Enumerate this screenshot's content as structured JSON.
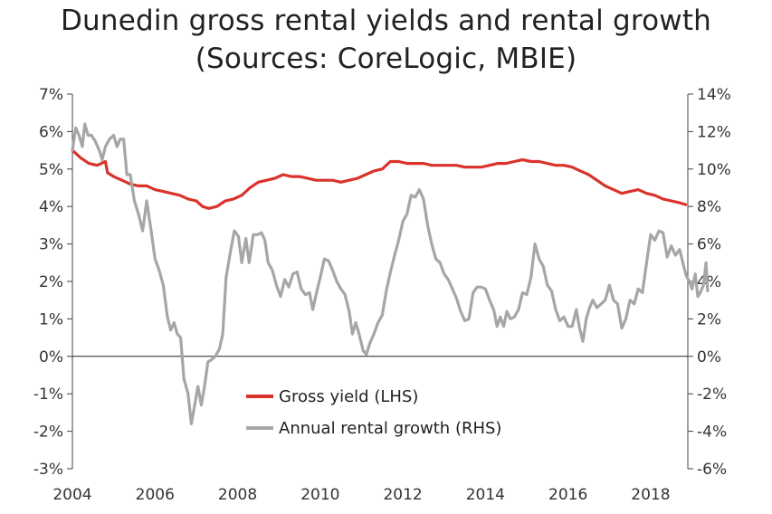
{
  "title_line1": "Dunedin gross rental yields and rental growth",
  "title_line2": "(Sources: CoreLogic, MBIE)",
  "chart_data": {
    "type": "line",
    "x_ticks": [
      "2004",
      "2006",
      "2008",
      "2010",
      "2012",
      "2014",
      "2016",
      "2018"
    ],
    "x_range": [
      2004,
      2018.9
    ],
    "y_left": {
      "ticks": [
        "7%",
        "6%",
        "5%",
        "4%",
        "3%",
        "2%",
        "1%",
        "0%",
        "-1%",
        "-2%",
        "-3%"
      ],
      "range": [
        -3,
        7
      ]
    },
    "y_right": {
      "ticks": [
        "14%",
        "12%",
        "10%",
        "8%",
        "6%",
        "4%",
        "2%",
        "0%",
        "-2%",
        "-4%",
        "-6%"
      ],
      "range": [
        -6,
        14
      ]
    },
    "legend_position": "center-left",
    "grid": false,
    "series": [
      {
        "name": "Gross yield (LHS)",
        "axis": "left",
        "color": "#d9332b",
        "points": [
          [
            2004.0,
            5.5
          ],
          [
            2004.2,
            5.3
          ],
          [
            2004.4,
            5.15
          ],
          [
            2004.6,
            5.1
          ],
          [
            2004.8,
            5.2
          ],
          [
            2004.85,
            4.9
          ],
          [
            2005.0,
            4.8
          ],
          [
            2005.2,
            4.7
          ],
          [
            2005.4,
            4.6
          ],
          [
            2005.6,
            4.55
          ],
          [
            2005.8,
            4.55
          ],
          [
            2006.0,
            4.45
          ],
          [
            2006.2,
            4.4
          ],
          [
            2006.4,
            4.35
          ],
          [
            2006.6,
            4.3
          ],
          [
            2006.8,
            4.2
          ],
          [
            2007.0,
            4.15
          ],
          [
            2007.15,
            4.0
          ],
          [
            2007.3,
            3.95
          ],
          [
            2007.5,
            4.0
          ],
          [
            2007.7,
            4.15
          ],
          [
            2007.9,
            4.2
          ],
          [
            2008.1,
            4.3
          ],
          [
            2008.3,
            4.5
          ],
          [
            2008.5,
            4.65
          ],
          [
            2008.7,
            4.7
          ],
          [
            2008.9,
            4.75
          ],
          [
            2009.1,
            4.85
          ],
          [
            2009.3,
            4.8
          ],
          [
            2009.5,
            4.8
          ],
          [
            2009.7,
            4.75
          ],
          [
            2009.9,
            4.7
          ],
          [
            2010.1,
            4.7
          ],
          [
            2010.3,
            4.7
          ],
          [
            2010.5,
            4.65
          ],
          [
            2010.7,
            4.7
          ],
          [
            2010.9,
            4.75
          ],
          [
            2011.1,
            4.85
          ],
          [
            2011.3,
            4.95
          ],
          [
            2011.5,
            5.0
          ],
          [
            2011.7,
            5.2
          ],
          [
            2011.9,
            5.2
          ],
          [
            2012.1,
            5.15
          ],
          [
            2012.3,
            5.15
          ],
          [
            2012.5,
            5.15
          ],
          [
            2012.7,
            5.1
          ],
          [
            2012.9,
            5.1
          ],
          [
            2013.1,
            5.1
          ],
          [
            2013.3,
            5.1
          ],
          [
            2013.5,
            5.05
          ],
          [
            2013.7,
            5.05
          ],
          [
            2013.9,
            5.05
          ],
          [
            2014.1,
            5.1
          ],
          [
            2014.3,
            5.15
          ],
          [
            2014.5,
            5.15
          ],
          [
            2014.7,
            5.2
          ],
          [
            2014.9,
            5.25
          ],
          [
            2015.1,
            5.2
          ],
          [
            2015.3,
            5.2
          ],
          [
            2015.5,
            5.15
          ],
          [
            2015.7,
            5.1
          ],
          [
            2015.9,
            5.1
          ],
          [
            2016.1,
            5.05
          ],
          [
            2016.3,
            4.95
          ],
          [
            2016.5,
            4.85
          ],
          [
            2016.7,
            4.7
          ],
          [
            2016.9,
            4.55
          ],
          [
            2017.1,
            4.45
          ],
          [
            2017.3,
            4.35
          ],
          [
            2017.5,
            4.4
          ],
          [
            2017.7,
            4.45
          ],
          [
            2017.9,
            4.35
          ],
          [
            2018.1,
            4.3
          ],
          [
            2018.3,
            4.2
          ],
          [
            2018.5,
            4.15
          ],
          [
            2018.7,
            4.1
          ],
          [
            2018.85,
            4.05
          ]
        ]
      },
      {
        "name": "Annual rental growth (RHS)",
        "axis": "right",
        "color": "#a6a6a6",
        "points": [
          [
            2004.0,
            11.0
          ],
          [
            2004.08,
            12.2
          ],
          [
            2004.16,
            11.8
          ],
          [
            2004.24,
            11.2
          ],
          [
            2004.3,
            12.4
          ],
          [
            2004.38,
            11.8
          ],
          [
            2004.46,
            11.8
          ],
          [
            2004.55,
            11.5
          ],
          [
            2004.65,
            11.0
          ],
          [
            2004.72,
            10.5
          ],
          [
            2004.8,
            11.2
          ],
          [
            2004.9,
            11.6
          ],
          [
            2005.0,
            11.8
          ],
          [
            2005.08,
            11.2
          ],
          [
            2005.16,
            11.6
          ],
          [
            2005.24,
            11.6
          ],
          [
            2005.32,
            9.7
          ],
          [
            2005.4,
            9.7
          ],
          [
            2005.5,
            8.3
          ],
          [
            2005.6,
            7.6
          ],
          [
            2005.7,
            6.7
          ],
          [
            2005.8,
            8.3
          ],
          [
            2005.9,
            6.8
          ],
          [
            2006.0,
            5.2
          ],
          [
            2006.1,
            4.6
          ],
          [
            2006.2,
            3.8
          ],
          [
            2006.3,
            2.1
          ],
          [
            2006.38,
            1.4
          ],
          [
            2006.46,
            1.8
          ],
          [
            2006.54,
            1.2
          ],
          [
            2006.62,
            1.0
          ],
          [
            2006.7,
            -1.2
          ],
          [
            2006.8,
            -2.0
          ],
          [
            2006.88,
            -3.6
          ],
          [
            2006.96,
            -2.6
          ],
          [
            2007.04,
            -1.6
          ],
          [
            2007.12,
            -2.6
          ],
          [
            2007.2,
            -1.6
          ],
          [
            2007.28,
            -0.3
          ],
          [
            2007.36,
            -0.2
          ],
          [
            2007.46,
            0.0
          ],
          [
            2007.56,
            0.4
          ],
          [
            2007.64,
            1.2
          ],
          [
            2007.72,
            4.2
          ],
          [
            2007.82,
            5.5
          ],
          [
            2007.92,
            6.7
          ],
          [
            2008.02,
            6.4
          ],
          [
            2008.1,
            5.0
          ],
          [
            2008.2,
            6.3
          ],
          [
            2008.28,
            5.0
          ],
          [
            2008.38,
            6.5
          ],
          [
            2008.48,
            6.5
          ],
          [
            2008.58,
            6.6
          ],
          [
            2008.66,
            6.2
          ],
          [
            2008.74,
            5.0
          ],
          [
            2008.84,
            4.6
          ],
          [
            2008.94,
            3.8
          ],
          [
            2009.04,
            3.2
          ],
          [
            2009.14,
            4.1
          ],
          [
            2009.24,
            3.7
          ],
          [
            2009.34,
            4.4
          ],
          [
            2009.44,
            4.5
          ],
          [
            2009.54,
            3.6
          ],
          [
            2009.64,
            3.3
          ],
          [
            2009.74,
            3.4
          ],
          [
            2009.82,
            2.5
          ],
          [
            2009.92,
            3.5
          ],
          [
            2010.0,
            4.2
          ],
          [
            2010.1,
            5.2
          ],
          [
            2010.2,
            5.1
          ],
          [
            2010.3,
            4.6
          ],
          [
            2010.4,
            4.0
          ],
          [
            2010.5,
            3.6
          ],
          [
            2010.6,
            3.3
          ],
          [
            2010.7,
            2.4
          ],
          [
            2010.78,
            1.2
          ],
          [
            2010.86,
            1.8
          ],
          [
            2010.94,
            1.2
          ],
          [
            2011.04,
            0.3
          ],
          [
            2011.12,
            0.1
          ],
          [
            2011.2,
            0.7
          ],
          [
            2011.3,
            1.2
          ],
          [
            2011.4,
            1.8
          ],
          [
            2011.5,
            2.2
          ],
          [
            2011.6,
            3.5
          ],
          [
            2011.7,
            4.5
          ],
          [
            2011.8,
            5.4
          ],
          [
            2011.9,
            6.2
          ],
          [
            2012.0,
            7.2
          ],
          [
            2012.1,
            7.6
          ],
          [
            2012.2,
            8.6
          ],
          [
            2012.3,
            8.5
          ],
          [
            2012.4,
            8.9
          ],
          [
            2012.5,
            8.4
          ],
          [
            2012.6,
            7.0
          ],
          [
            2012.7,
            6.0
          ],
          [
            2012.8,
            5.2
          ],
          [
            2012.9,
            5.0
          ],
          [
            2013.0,
            4.4
          ],
          [
            2013.1,
            4.1
          ],
          [
            2013.2,
            3.6
          ],
          [
            2013.3,
            3.1
          ],
          [
            2013.4,
            2.4
          ],
          [
            2013.5,
            1.9
          ],
          [
            2013.6,
            2.0
          ],
          [
            2013.7,
            3.4
          ],
          [
            2013.8,
            3.7
          ],
          [
            2013.9,
            3.7
          ],
          [
            2014.0,
            3.6
          ],
          [
            2014.1,
            3.0
          ],
          [
            2014.2,
            2.5
          ],
          [
            2014.28,
            1.6
          ],
          [
            2014.36,
            2.1
          ],
          [
            2014.44,
            1.6
          ],
          [
            2014.52,
            2.4
          ],
          [
            2014.6,
            2.0
          ],
          [
            2014.7,
            2.1
          ],
          [
            2014.8,
            2.5
          ],
          [
            2014.9,
            3.4
          ],
          [
            2015.0,
            3.3
          ],
          [
            2015.1,
            4.2
          ],
          [
            2015.2,
            6.0
          ],
          [
            2015.3,
            5.2
          ],
          [
            2015.4,
            4.8
          ],
          [
            2015.5,
            3.8
          ],
          [
            2015.6,
            3.5
          ],
          [
            2015.7,
            2.5
          ],
          [
            2015.8,
            1.9
          ],
          [
            2015.9,
            2.1
          ],
          [
            2016.0,
            1.6
          ],
          [
            2016.1,
            1.6
          ],
          [
            2016.2,
            2.5
          ],
          [
            2016.28,
            1.5
          ],
          [
            2016.36,
            0.8
          ],
          [
            2016.44,
            2.0
          ],
          [
            2016.52,
            2.6
          ],
          [
            2016.6,
            3.0
          ],
          [
            2016.7,
            2.6
          ],
          [
            2016.8,
            2.8
          ],
          [
            2016.9,
            3.0
          ],
          [
            2017.0,
            3.8
          ],
          [
            2017.1,
            3.0
          ],
          [
            2017.2,
            2.8
          ],
          [
            2017.3,
            1.5
          ],
          [
            2017.4,
            2.0
          ],
          [
            2017.5,
            3.0
          ],
          [
            2017.6,
            2.8
          ],
          [
            2017.7,
            3.6
          ],
          [
            2017.8,
            3.4
          ],
          [
            2017.9,
            5.0
          ],
          [
            2018.0,
            6.5
          ],
          [
            2018.1,
            6.2
          ],
          [
            2018.2,
            6.7
          ],
          [
            2018.3,
            6.6
          ],
          [
            2018.4,
            5.3
          ],
          [
            2018.5,
            5.9
          ],
          [
            2018.6,
            5.4
          ],
          [
            2018.7,
            5.7
          ],
          [
            2018.78,
            5.0
          ],
          [
            2018.86,
            4.3
          ],
          [
            2018.94,
            4.0
          ],
          [
            2019.0,
            3.6
          ],
          [
            2019.08,
            4.4
          ],
          [
            2019.14,
            3.2
          ],
          [
            2019.2,
            3.4
          ],
          [
            2019.28,
            3.8
          ],
          [
            2019.34,
            5.0
          ],
          [
            2019.38,
            3.5
          ]
        ]
      }
    ]
  }
}
